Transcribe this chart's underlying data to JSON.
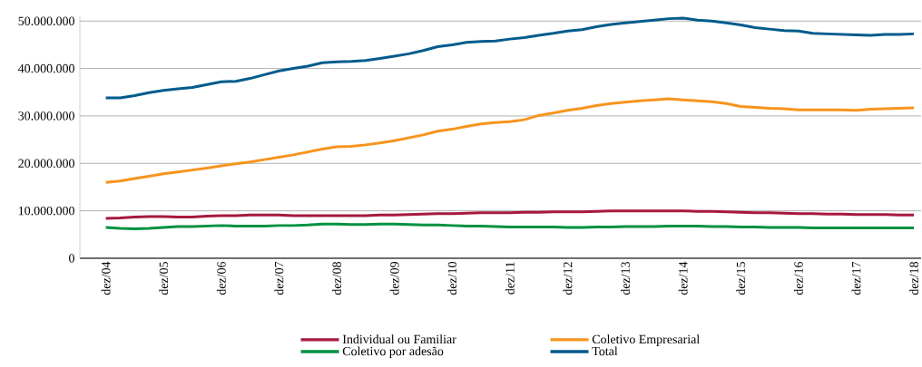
{
  "chart_data": {
    "type": "line",
    "categories": [
      "dez/04",
      null,
      null,
      null,
      "dez/05",
      null,
      null,
      null,
      "dez/06",
      null,
      null,
      null,
      "dez/07",
      null,
      null,
      null,
      "dez/08",
      null,
      null,
      null,
      "dez/09",
      null,
      null,
      null,
      "dez/10",
      null,
      null,
      null,
      "dez/11",
      null,
      null,
      null,
      "dez/12",
      null,
      null,
      null,
      "dez/13",
      null,
      null,
      null,
      "dez/14",
      null,
      null,
      null,
      "dez/15",
      null,
      null,
      null,
      "dez/16",
      null,
      null,
      null,
      "dez/17",
      null,
      null,
      null,
      "dez/18"
    ],
    "series": [
      {
        "name": "Individual ou Familiar",
        "color": "#a6193c",
        "values": [
          8400000,
          8500000,
          8700000,
          8800000,
          8800000,
          8700000,
          8700000,
          8900000,
          9000000,
          9000000,
          9100000,
          9100000,
          9100000,
          9000000,
          9000000,
          9000000,
          9000000,
          9000000,
          9000000,
          9100000,
          9100000,
          9200000,
          9300000,
          9400000,
          9400000,
          9500000,
          9600000,
          9600000,
          9600000,
          9700000,
          9700000,
          9800000,
          9800000,
          9800000,
          9900000,
          10000000,
          10000000,
          10000000,
          10000000,
          10000000,
          10000000,
          9900000,
          9900000,
          9800000,
          9700000,
          9600000,
          9600000,
          9500000,
          9400000,
          9400000,
          9300000,
          9300000,
          9200000,
          9200000,
          9200000,
          9100000,
          9100000
        ]
      },
      {
        "name": "Coletivo Empresarial",
        "color": "#f7941d",
        "values": [
          16000000,
          16300000,
          16800000,
          17300000,
          17800000,
          18200000,
          18600000,
          19000000,
          19500000,
          19900000,
          20300000,
          20800000,
          21300000,
          21800000,
          22400000,
          23000000,
          23500000,
          23600000,
          23900000,
          24300000,
          24800000,
          25400000,
          26000000,
          26800000,
          27200000,
          27800000,
          28300000,
          28600000,
          28800000,
          29200000,
          30100000,
          30600000,
          31200000,
          31600000,
          32200000,
          32600000,
          32900000,
          33200000,
          33400000,
          33600000,
          33400000,
          33200000,
          33000000,
          32600000,
          32000000,
          31800000,
          31600000,
          31500000,
          31300000,
          31300000,
          31300000,
          31300000,
          31200000,
          31400000,
          31500000,
          31600000,
          31700000
        ]
      },
      {
        "name": "Coletivo por adesão",
        "color": "#00923f",
        "values": [
          6500000,
          6300000,
          6200000,
          6300000,
          6500000,
          6700000,
          6700000,
          6800000,
          6900000,
          6800000,
          6800000,
          6800000,
          6900000,
          6900000,
          7000000,
          7200000,
          7200000,
          7100000,
          7100000,
          7200000,
          7200000,
          7100000,
          7000000,
          7000000,
          6900000,
          6800000,
          6800000,
          6700000,
          6600000,
          6600000,
          6600000,
          6600000,
          6500000,
          6500000,
          6600000,
          6600000,
          6700000,
          6700000,
          6700000,
          6800000,
          6800000,
          6800000,
          6700000,
          6700000,
          6600000,
          6600000,
          6500000,
          6500000,
          6500000,
          6400000,
          6400000,
          6400000,
          6400000,
          6400000,
          6400000,
          6400000,
          6400000
        ]
      },
      {
        "name": "Total",
        "color": "#005b8c",
        "values": [
          33800000,
          33800000,
          34300000,
          34900000,
          35400000,
          35700000,
          36000000,
          36600000,
          37200000,
          37300000,
          37900000,
          38700000,
          39500000,
          40000000,
          40500000,
          41200000,
          41400000,
          41500000,
          41700000,
          42100000,
          42600000,
          43100000,
          43800000,
          44600000,
          45000000,
          45500000,
          45700000,
          45800000,
          46200000,
          46500000,
          47000000,
          47400000,
          47900000,
          48200000,
          48800000,
          49300000,
          49600000,
          49900000,
          50200000,
          50500000,
          50600000,
          50200000,
          50000000,
          49600000,
          49200000,
          48600000,
          48300000,
          48000000,
          47900000,
          47400000,
          47300000,
          47200000,
          47100000,
          47000000,
          47200000,
          47200000,
          47300000
        ]
      }
    ],
    "ylim": [
      0,
      51000000
    ],
    "yticks": [
      0,
      {
        "value": 10000000,
        "label": "10.000.000"
      },
      {
        "value": 20000000,
        "label": "20.000.000"
      },
      {
        "value": 30000000,
        "label": "30.000.000"
      },
      {
        "value": 40000000,
        "label": "40.000.000"
      },
      {
        "value": 50000000,
        "label": "50.000.000"
      }
    ],
    "grid": "y",
    "legend": "bottom",
    "marker": "none",
    "line_style": "solid"
  }
}
